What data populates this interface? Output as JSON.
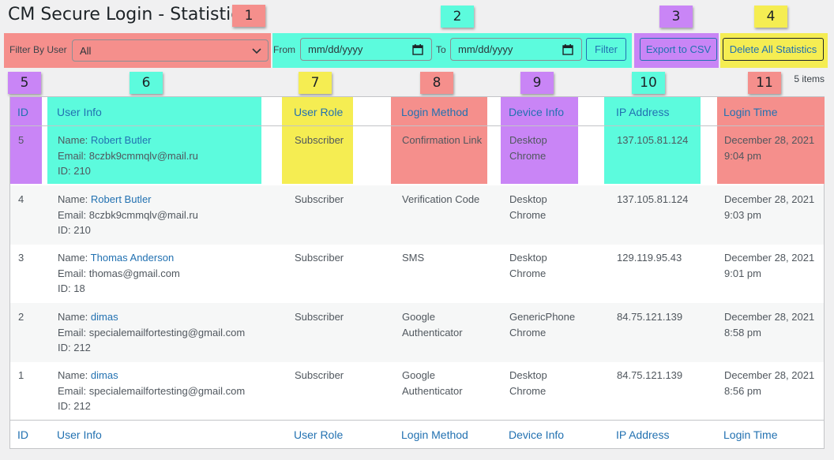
{
  "page": {
    "title": "CM Secure Login - Statistics",
    "items_count": "5 items"
  },
  "badges": [
    "1",
    "2",
    "3",
    "4",
    "5",
    "6",
    "7",
    "8",
    "9",
    "10",
    "11"
  ],
  "colors": {
    "red": "#f58f8c",
    "teal": "#5cfbdd",
    "purple": "#c985f6",
    "yellow": "#f5ed52",
    "link": "#2271b1"
  },
  "filters": {
    "filter_by_user_label": "Filter By User",
    "user_select_value": "All",
    "from_label": "From",
    "from_placeholder": "mm/dd/yyyy",
    "to_label": "To",
    "to_placeholder": "mm/dd/yyyy",
    "filter_button": "Filter",
    "export_button": "Export to CSV",
    "delete_button": "Delete All Statistics"
  },
  "columns": [
    "ID",
    "User Info",
    "User Role",
    "Login Method",
    "Device Info",
    "IP Address",
    "Login Time"
  ],
  "rows": [
    {
      "id": "5",
      "name_label": "Name: ",
      "name": "Robert Butler",
      "email": "Email: 8czbk9cmmqlv@mail.ru",
      "uid": "ID: 210",
      "role": "Subscriber",
      "method": [
        "Confirmation Link"
      ],
      "device": [
        "Desktop",
        "Chrome"
      ],
      "ip": "137.105.81.124",
      "time": [
        "December 28, 2021",
        "9:04 pm"
      ]
    },
    {
      "id": "4",
      "name_label": "Name: ",
      "name": "Robert Butler",
      "email": "Email: 8czbk9cmmqlv@mail.ru",
      "uid": "ID: 210",
      "role": "Subscriber",
      "method": [
        "Verification Code"
      ],
      "device": [
        "Desktop",
        "Chrome"
      ],
      "ip": "137.105.81.124",
      "time": [
        "December 28, 2021",
        "9:03 pm"
      ]
    },
    {
      "id": "3",
      "name_label": "Name: ",
      "name": "Thomas Anderson",
      "email": "Email: thomas@gmail.com",
      "uid": "ID: 18",
      "role": "Subscriber",
      "method": [
        "SMS"
      ],
      "device": [
        "Desktop",
        "Chrome"
      ],
      "ip": "129.119.95.43",
      "time": [
        "December 28, 2021",
        "9:01 pm"
      ]
    },
    {
      "id": "2",
      "name_label": "Name: ",
      "name": "dimas",
      "email": "Email: specialemailfortesting@gmail.com",
      "uid": "ID: 212",
      "role": "Subscriber",
      "method": [
        "Google",
        "Authenticator"
      ],
      "device": [
        "GenericPhone",
        "Chrome"
      ],
      "ip": "84.75.121.139",
      "time": [
        "December 28, 2021",
        "8:58 pm"
      ]
    },
    {
      "id": "1",
      "name_label": "Name: ",
      "name": "dimas",
      "email": "Email: specialemailfortesting@gmail.com",
      "uid": "ID: 212",
      "role": "Subscriber",
      "method": [
        "Google",
        "Authenticator"
      ],
      "device": [
        "Desktop",
        "Chrome"
      ],
      "ip": "84.75.121.139",
      "time": [
        "December 28, 2021",
        "8:56 pm"
      ]
    }
  ]
}
